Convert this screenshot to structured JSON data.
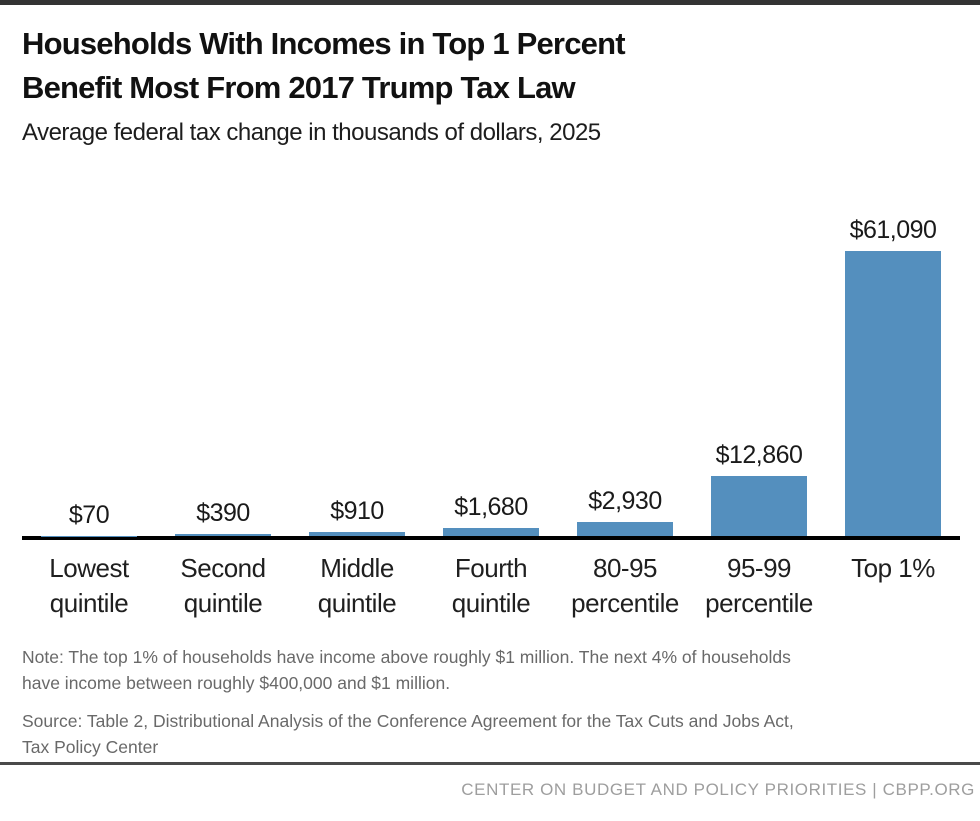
{
  "header": {
    "title_line1": "Households With Incomes in Top 1 Percent",
    "title_line2": "Benefit Most From 2017 Trump Tax Law",
    "subtitle": "Average federal tax change in thousands of dollars, 2025"
  },
  "chart_data": {
    "type": "bar",
    "title": "Households With Incomes in Top 1 Percent Benefit Most From 2017 Trump Tax Law",
    "subtitle": "Average federal tax change in thousands of dollars, 2025",
    "categories": [
      "Lowest quintile",
      "Second quintile",
      "Middle quintile",
      "Fourth quintile",
      "80-95 percentile",
      "95-99 percentile",
      "Top 1%"
    ],
    "values": [
      70,
      390,
      910,
      1680,
      2930,
      12860,
      61090
    ],
    "value_labels": [
      "$70",
      "$390",
      "$910",
      "$1,680",
      "$2,930",
      "$12,860",
      "$61,090"
    ],
    "bar_color": "#548fbe",
    "axis_color": "#000000",
    "ylim": [
      0,
      61090
    ],
    "grid": false,
    "legend": "none",
    "xlabel": "",
    "ylabel": ""
  },
  "notes": {
    "note": "Note: The top 1% of households have income above roughly $1 million. The next 4% of households have income between roughly $400,000 and $1 million.",
    "source": "Source: Table 2, Distributional Analysis of the Conference Agreement for the Tax Cuts and Jobs Act, Tax Policy Center"
  },
  "footer": {
    "text": "CENTER ON BUDGET AND POLICY PRIORITIES | CBPP.ORG"
  }
}
